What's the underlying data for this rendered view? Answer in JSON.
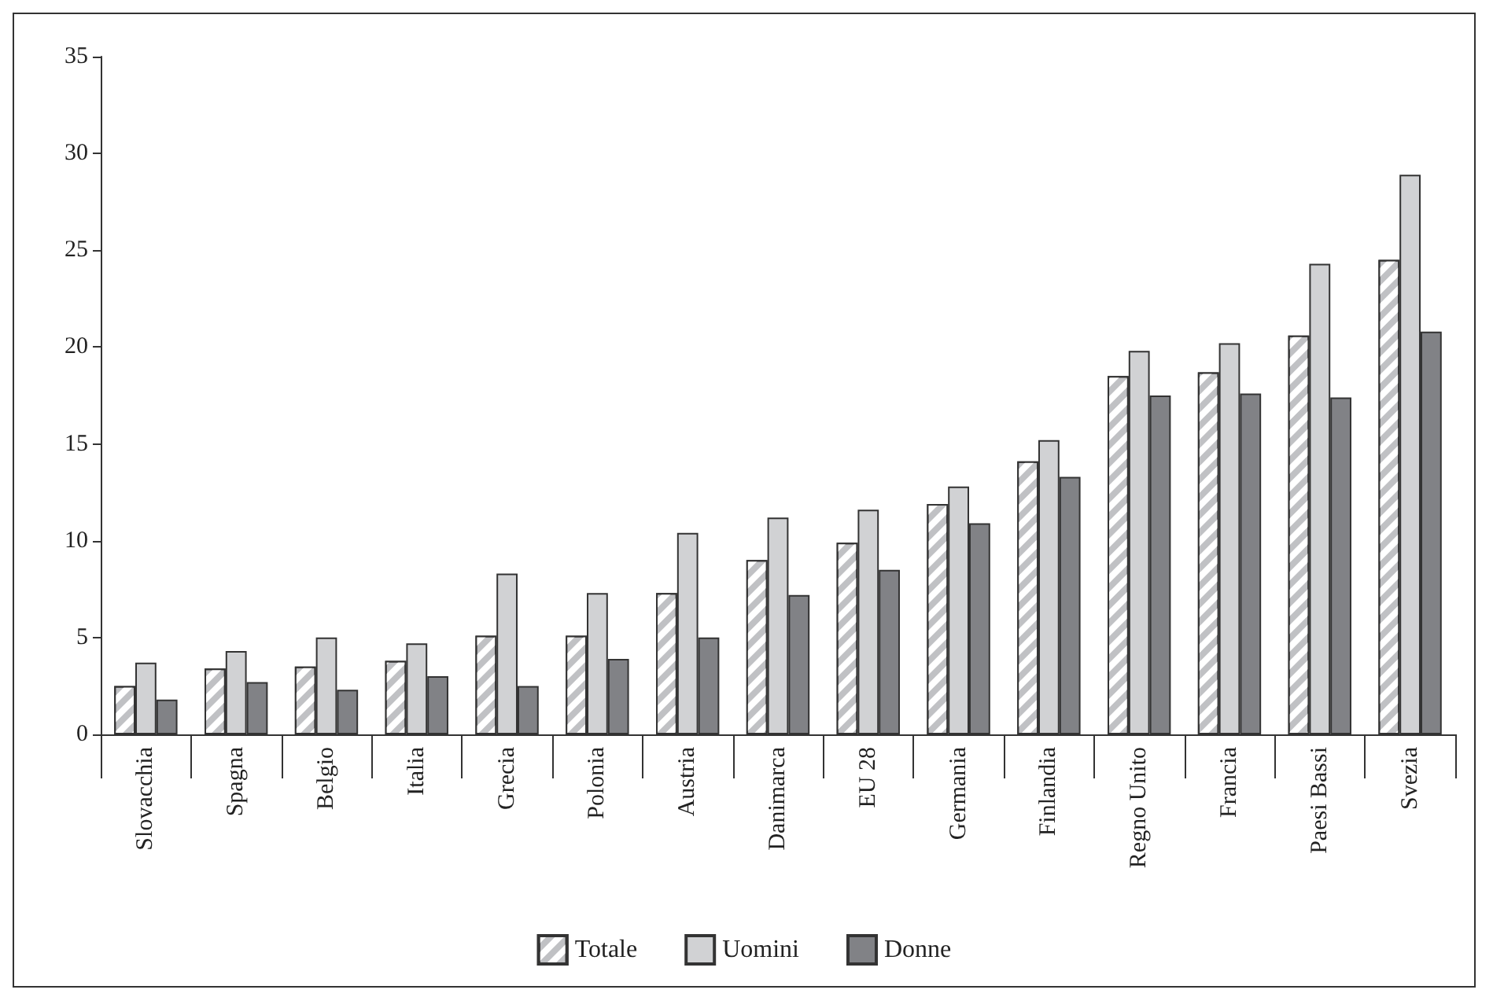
{
  "chart_data": {
    "type": "bar",
    "categories": [
      "Slovacchia",
      "Spagna",
      "Belgio",
      "Italia",
      "Grecia",
      "Polonia",
      "Austria",
      "Danimarca",
      "EU 28",
      "Germania",
      "Finlandia",
      "Regno Unito",
      "Francia",
      "Paesi Bassi",
      "Svezia"
    ],
    "series": [
      {
        "name": "Totale",
        "color": "#c0c1c4",
        "values": [
          2.5,
          3.4,
          3.5,
          3.8,
          5.1,
          5.1,
          7.3,
          9.0,
          9.9,
          11.9,
          14.1,
          18.5,
          18.7,
          20.6,
          24.5
        ]
      },
      {
        "name": "Uomini",
        "color": "#d1d2d4",
        "values": [
          3.7,
          4.3,
          5.0,
          4.7,
          8.3,
          7.3,
          10.4,
          11.2,
          11.6,
          12.8,
          15.2,
          19.8,
          20.2,
          24.3,
          28.9
        ]
      },
      {
        "name": "Donne",
        "color": "#818286",
        "values": [
          1.8,
          2.7,
          2.3,
          3.0,
          2.5,
          3.9,
          5.0,
          7.2,
          8.5,
          10.9,
          13.3,
          17.5,
          17.6,
          17.4,
          20.8
        ]
      }
    ],
    "ylim": [
      0,
      35
    ],
    "yticks": [
      0,
      5,
      10,
      15,
      20,
      25,
      30,
      35
    ],
    "grid": false,
    "legend": "bottom"
  }
}
